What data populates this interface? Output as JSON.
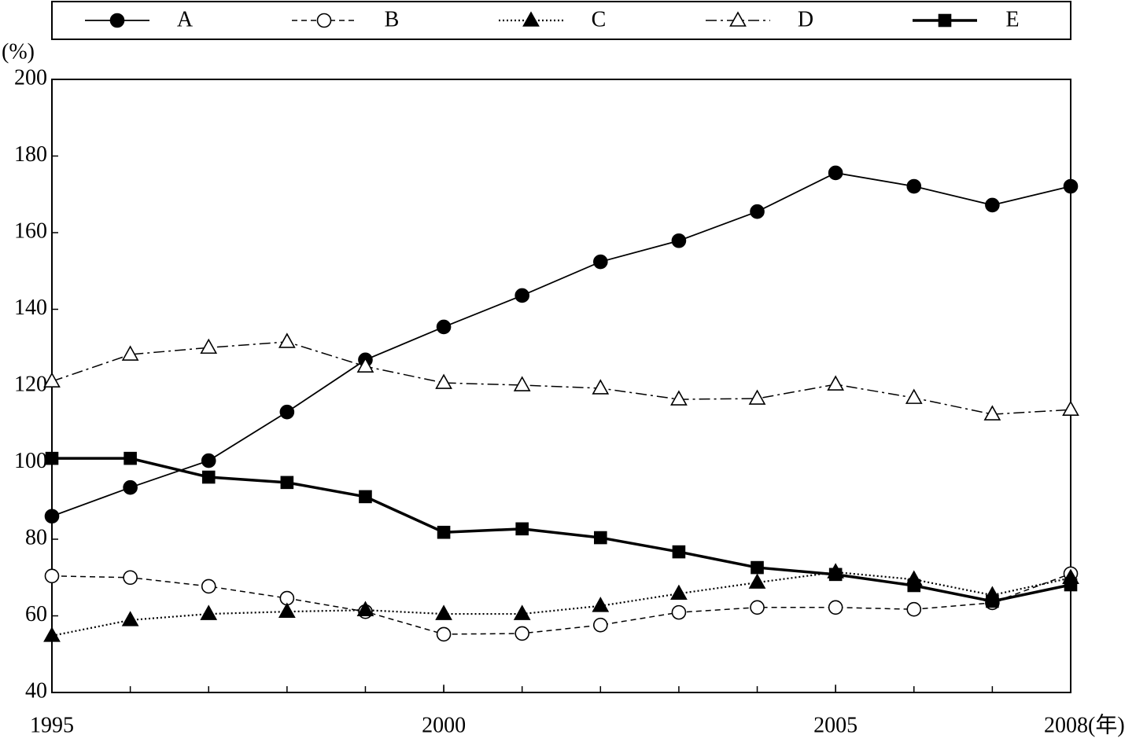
{
  "chart_data": {
    "type": "line",
    "ylabel": "(%)",
    "x": [
      1995,
      1996,
      1997,
      1998,
      1999,
      2000,
      2001,
      2002,
      2003,
      2004,
      2005,
      2006,
      2007,
      2008
    ],
    "xlim": [
      1995,
      2008
    ],
    "xticks": [
      1995,
      2000,
      2005,
      {
        "value": 2008,
        "label": "2008(年)"
      }
    ],
    "ylim": [
      40,
      200
    ],
    "yticks": [
      40,
      60,
      80,
      100,
      120,
      140,
      160,
      180,
      200
    ],
    "grid": false,
    "legend": "top",
    "series": [
      {
        "name": "A",
        "color": "#000000",
        "linestyle": "solid",
        "marker": "circle",
        "filled": true,
        "values": [
          86,
          93.5,
          100.5,
          113.2,
          126.8,
          135.4,
          143.6,
          152.4,
          157.9,
          165.5,
          175.6,
          172.1,
          167.2,
          172.1
        ]
      },
      {
        "name": "B",
        "color": "#000000",
        "linestyle": "dashed",
        "marker": "circle",
        "filled": false,
        "values": [
          70.4,
          70,
          67.7,
          64.6,
          61.1,
          55.2,
          55.4,
          57.6,
          60.9,
          62.2,
          62.2,
          61.7,
          63.4,
          71
        ]
      },
      {
        "name": "C",
        "color": "#000000",
        "linestyle": "dotted",
        "marker": "triangle",
        "filled": true,
        "values": [
          54.8,
          58.9,
          60.5,
          61.1,
          61.5,
          60.5,
          60.5,
          62.6,
          65.8,
          68.7,
          71.4,
          69.5,
          65.4,
          69.9
        ]
      },
      {
        "name": "D",
        "color": "#000000",
        "linestyle": "dashdot",
        "marker": "triangle",
        "filled": false,
        "values": [
          121.2,
          128.2,
          130,
          131.5,
          125.1,
          120.8,
          120.2,
          119.4,
          116.5,
          116.7,
          120.4,
          116.9,
          112.6,
          113.8
        ]
      },
      {
        "name": "E",
        "color": "#000000",
        "linestyle": "thick",
        "marker": "square",
        "filled": true,
        "values": [
          101.1,
          101.1,
          96.2,
          94.8,
          91.1,
          81.8,
          82.7,
          80.4,
          76.7,
          72.6,
          70.8,
          67.9,
          63.8,
          68.1
        ]
      }
    ]
  }
}
